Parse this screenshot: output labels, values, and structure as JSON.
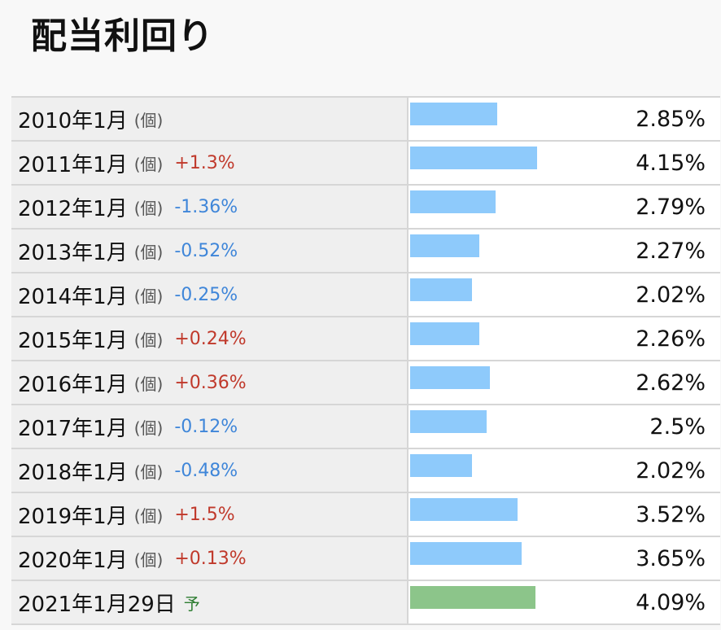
{
  "title": "配当利回り",
  "colors": {
    "bar": "#8ecafb",
    "prediction_bar": "#8cc58a",
    "up": "#c0392b",
    "down": "#3f86d9"
  },
  "rows": [
    {
      "label": "2010年1月",
      "unit": "(個)",
      "change": "",
      "dir": "",
      "value": "2.85%"
    },
    {
      "label": "2011年1月",
      "unit": "(個)",
      "change": "+1.3%",
      "dir": "up",
      "value": "4.15%"
    },
    {
      "label": "2012年1月",
      "unit": "(個)",
      "change": "-1.36%",
      "dir": "down",
      "value": "2.79%"
    },
    {
      "label": "2013年1月",
      "unit": "(個)",
      "change": "-0.52%",
      "dir": "down",
      "value": "2.27%"
    },
    {
      "label": "2014年1月",
      "unit": "(個)",
      "change": "-0.25%",
      "dir": "down",
      "value": "2.02%"
    },
    {
      "label": "2015年1月",
      "unit": "(個)",
      "change": "+0.24%",
      "dir": "up",
      "value": "2.26%"
    },
    {
      "label": "2016年1月",
      "unit": "(個)",
      "change": "+0.36%",
      "dir": "up",
      "value": "2.62%"
    },
    {
      "label": "2017年1月",
      "unit": "(個)",
      "change": "-0.12%",
      "dir": "down",
      "value": "2.5%"
    },
    {
      "label": "2018年1月",
      "unit": "(個)",
      "change": "-0.48%",
      "dir": "down",
      "value": "2.02%"
    },
    {
      "label": "2019年1月",
      "unit": "(個)",
      "change": "+1.5%",
      "dir": "up",
      "value": "3.52%"
    },
    {
      "label": "2020年1月",
      "unit": "(個)",
      "change": "+0.13%",
      "dir": "up",
      "value": "3.65%"
    },
    {
      "label": "2021年1月29日",
      "unit": "",
      "change": "",
      "dir": "",
      "pred": "予",
      "value": "4.09%"
    }
  ],
  "chart_data": {
    "type": "bar",
    "title": "配当利回り",
    "categories": [
      "2010年1月",
      "2011年1月",
      "2012年1月",
      "2013年1月",
      "2014年1月",
      "2015年1月",
      "2016年1月",
      "2017年1月",
      "2018年1月",
      "2019年1月",
      "2020年1月",
      "2021年1月29日"
    ],
    "values": [
      2.85,
      4.15,
      2.79,
      2.27,
      2.02,
      2.26,
      2.62,
      2.5,
      2.02,
      3.52,
      3.65,
      4.09
    ],
    "changes": [
      "",
      "+1.3%",
      "-1.36%",
      "-0.52%",
      "-0.25%",
      "+0.24%",
      "+0.36%",
      "-0.12%",
      "-0.48%",
      "+1.5%",
      "+0.13%",
      ""
    ],
    "prediction_index": 11
  }
}
